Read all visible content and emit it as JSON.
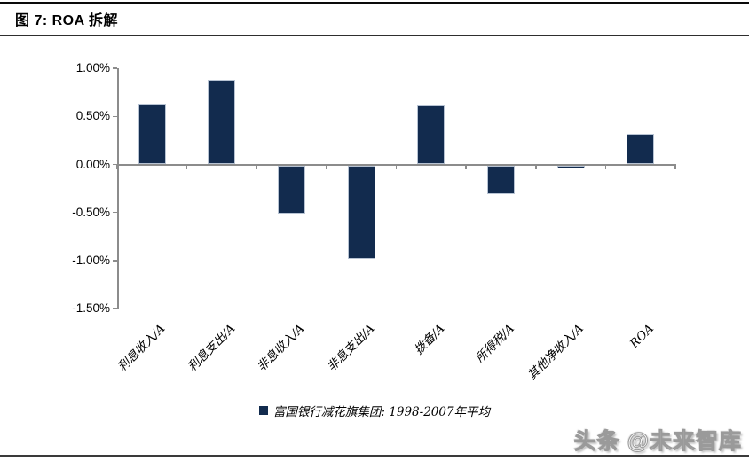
{
  "header": {
    "title": "图 7:  ROA 拆解"
  },
  "watermark": {
    "text": "头条 @未来智库"
  },
  "chart_data": {
    "type": "bar",
    "title": "图 7: ROA 拆解",
    "categories": [
      "利息收入/A",
      "利息支出/A",
      "非息收入/A",
      "非息支出/A",
      "拨备/A",
      "所得税/A",
      "其他净收入/A",
      "ROA"
    ],
    "values": [
      0.63,
      0.88,
      -0.5,
      -0.97,
      0.61,
      -0.3,
      -0.03,
      0.32
    ],
    "unit": "%",
    "legend": "富国银行减花旗集团: 1998-2007年平均",
    "y_ticks": [
      "1.00%",
      "0.50%",
      "0.00%",
      "-0.50%",
      "-1.00%",
      "-1.50%"
    ],
    "ylim": [
      -1.5,
      1.0
    ],
    "grid": false,
    "legend_position": "bottom-center",
    "bar_color": "#122B4E",
    "axis_color": "#8C8C8C"
  }
}
